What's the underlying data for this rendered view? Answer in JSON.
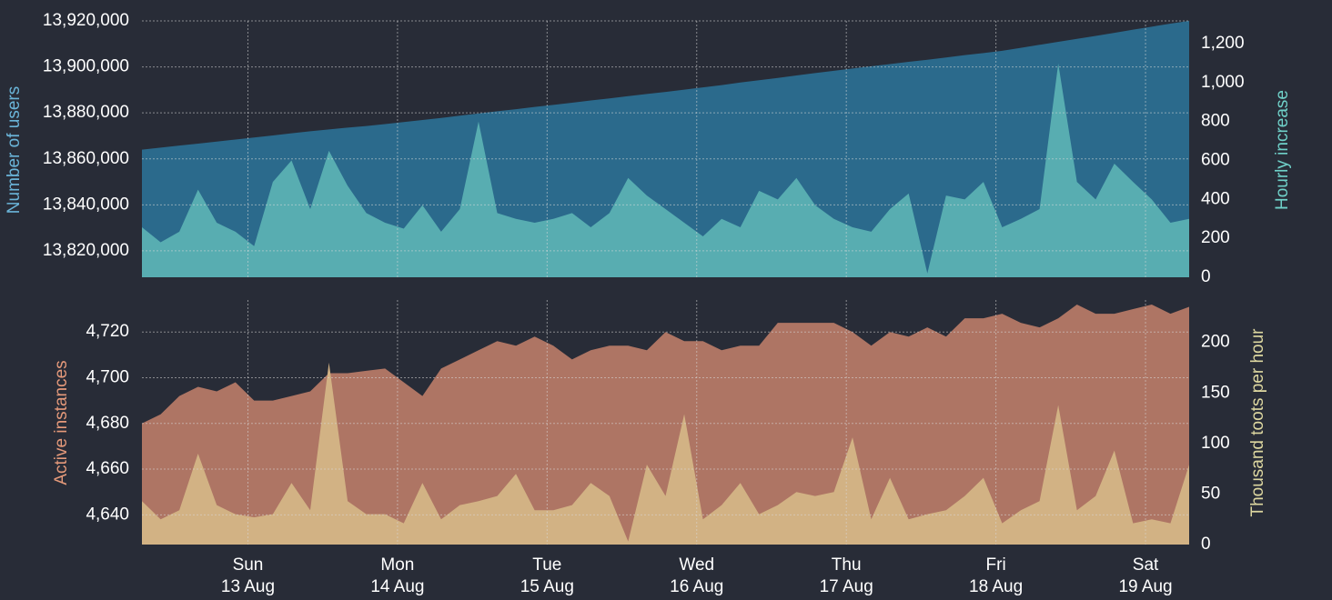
{
  "chart_data": [
    {
      "type": "area",
      "x": [
        -17,
        -14,
        -11,
        -8,
        -5,
        -2,
        1,
        4,
        7,
        10,
        13,
        16,
        19,
        22,
        25,
        28,
        31,
        34,
        37,
        40,
        43,
        46,
        49,
        52,
        55,
        58,
        61,
        64,
        67,
        70,
        73,
        76,
        79,
        82,
        85,
        88,
        91,
        94,
        97,
        100,
        103,
        106,
        109,
        112,
        115,
        118,
        121,
        124,
        127,
        130,
        133,
        136,
        139,
        142,
        145,
        148,
        151
      ],
      "xlim": [
        -17,
        151
      ],
      "xticks": [
        0,
        24,
        48,
        72,
        96,
        120,
        144
      ],
      "ylim": [
        13808500,
        13920000
      ],
      "yticks": [
        {
          "value": 13820000,
          "label": "13,820,000"
        },
        {
          "value": 13840000,
          "label": "13,840,000"
        },
        {
          "value": 13860000,
          "label": "13,860,000"
        },
        {
          "value": 13880000,
          "label": "13,880,000"
        },
        {
          "value": 13900000,
          "label": "13,900,000"
        },
        {
          "value": 13920000,
          "label": "13,920,000"
        }
      ],
      "y2lim": [
        0,
        1317
      ],
      "y2ticks": [
        0,
        200,
        400,
        600,
        800,
        {
          "value": 1000,
          "label": "1,000"
        },
        {
          "value": 1200,
          "label": "1,200"
        }
      ],
      "grid": true,
      "series": [
        {
          "name": "Number of users",
          "color": "#2b6a8c",
          "title_color": "#6ab4d8",
          "values": [
            13864000,
            13864900,
            13865800,
            13866600,
            13867500,
            13868400,
            13869300,
            13870200,
            13871100,
            13872000,
            13872800,
            13873600,
            13874300,
            13875100,
            13876000,
            13876900,
            13877800,
            13878800,
            13879700,
            13880700,
            13881600,
            13882600,
            13883500,
            13884400,
            13885400,
            13886300,
            13887300,
            13888200,
            13889100,
            13890100,
            13891100,
            13892100,
            13893200,
            13894200,
            13895200,
            13896300,
            13897300,
            13898300,
            13899300,
            13900300,
            13901200,
            13902200,
            13903100,
            13904100,
            13905100,
            13906000,
            13907000,
            13908300,
            13909600,
            13910900,
            13912200,
            13913500,
            13914800,
            13916200,
            13917500,
            13918800,
            13920000
          ]
        },
        {
          "name": "Hourly increase",
          "color": "#58adb1",
          "title_color": "#6fd0c8",
          "axis": "y2",
          "values": [
            257,
            180,
            234,
            450,
            280,
            234,
            160,
            490,
            600,
            350,
            650,
            470,
            330,
            280,
            250,
            370,
            234,
            350,
            800,
            330,
            300,
            280,
            300,
            330,
            257,
            330,
            510,
            420,
            350,
            280,
            210,
            300,
            257,
            444,
            400,
            510,
            370,
            300,
            257,
            234,
            350,
            430,
            20,
            420,
            400,
            490,
            257,
            300,
            350,
            1098,
            490,
            400,
            584,
            490,
            400,
            280,
            300
          ]
        }
      ]
    },
    {
      "type": "area",
      "x": [
        -17,
        -14,
        -11,
        -8,
        -5,
        -2,
        1,
        4,
        7,
        10,
        13,
        16,
        19,
        22,
        25,
        28,
        31,
        34,
        37,
        40,
        43,
        46,
        49,
        52,
        55,
        58,
        61,
        64,
        67,
        70,
        73,
        76,
        79,
        82,
        85,
        88,
        91,
        94,
        97,
        100,
        103,
        106,
        109,
        112,
        115,
        118,
        121,
        124,
        127,
        130,
        133,
        136,
        139,
        142,
        145,
        148,
        151
      ],
      "xlim": [
        -17,
        151
      ],
      "xticks": [
        {
          "value": 0,
          "label": "Sun"
        },
        {
          "value": 24,
          "label": "Mon"
        },
        {
          "value": 48,
          "label": "Tue"
        },
        {
          "value": 72,
          "label": "Wed"
        },
        {
          "value": 96,
          "label": "Thu"
        },
        {
          "value": 120,
          "label": "Fri"
        },
        {
          "value": 144,
          "label": "Sat"
        }
      ],
      "xtick_sublabels": [
        "13 Aug",
        "14 Aug",
        "15 Aug",
        "16 Aug",
        "17 Aug",
        "18 Aug",
        "19 Aug"
      ],
      "ylim": [
        4627,
        4734
      ],
      "yticks": [
        {
          "value": 4640,
          "label": "4,640"
        },
        {
          "value": 4660,
          "label": "4,660"
        },
        {
          "value": 4680,
          "label": "4,680"
        },
        {
          "value": 4700,
          "label": "4,700"
        },
        {
          "value": 4720,
          "label": "4,720"
        }
      ],
      "y2lim": [
        0,
        242
      ],
      "y2ticks": [
        0,
        50,
        100,
        150,
        200
      ],
      "grid": true,
      "series": [
        {
          "name": "Active instances",
          "color": "#ae7564",
          "title_color": "#e4997a",
          "values": [
            4680,
            4684,
            4692,
            4696,
            4694,
            4698,
            4690,
            4690,
            4692,
            4694,
            4702,
            4702,
            4703,
            4704,
            4698,
            4692,
            4704,
            4708,
            4712,
            4716,
            4714,
            4718,
            4714,
            4708,
            4712,
            4714,
            4714,
            4712,
            4720,
            4716,
            4716,
            4712,
            4714,
            4714,
            4724,
            4724,
            4724,
            4724,
            4720,
            4714,
            4720,
            4718,
            4722,
            4718,
            4726,
            4726,
            4728,
            4724,
            4722,
            4726,
            4732,
            4728,
            4728,
            4730,
            4732,
            4728,
            4731
          ]
        },
        {
          "name": "Thousand toots per hour",
          "color": "#d2b284",
          "title_color": "#ddd7a0",
          "axis": "y2",
          "values": [
            43,
            25,
            34,
            90,
            39,
            30,
            27,
            30,
            61,
            34,
            180,
            43,
            30,
            30,
            21,
            61,
            25,
            39,
            43,
            48,
            70,
            34,
            34,
            39,
            61,
            48,
            3,
            79,
            48,
            129,
            25,
            39,
            61,
            30,
            39,
            52,
            48,
            52,
            106,
            25,
            66,
            25,
            30,
            34,
            48,
            66,
            21,
            34,
            43,
            138,
            34,
            48,
            93,
            21,
            25,
            21,
            79
          ]
        }
      ]
    }
  ]
}
